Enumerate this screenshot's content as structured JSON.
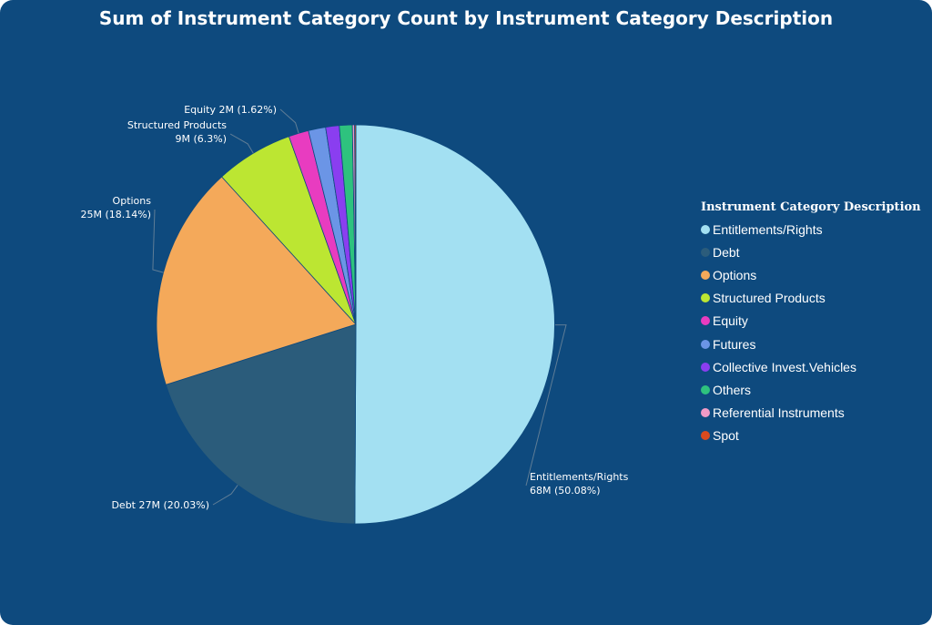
{
  "chart_data": {
    "type": "pie",
    "title": "Sum of Instrument Category Count by Instrument Category Description",
    "legend": {
      "title": "Instrument Category Description",
      "placement": "right"
    },
    "slices": [
      {
        "name": "Entitlements/Rights",
        "percent": 50.08,
        "label": "Entitlements/Rights 68M (50.08%)",
        "color": "#a3e0f2"
      },
      {
        "name": "Debt",
        "percent": 20.03,
        "label": "Debt 27M (20.03%)",
        "color": "#2b5c7b"
      },
      {
        "name": "Options",
        "percent": 18.14,
        "label": "Options 25M (18.14%)",
        "color": "#f4a95a"
      },
      {
        "name": "Structured Products",
        "percent": 6.3,
        "label": "Structured Products 9M (6.3%)",
        "color": "#bce632"
      },
      {
        "name": "Equity",
        "percent": 1.62,
        "label": "Equity 2M (1.62%)",
        "color": "#e83cc0"
      },
      {
        "name": "Futures",
        "percent": 1.4,
        "label": "",
        "color": "#6b95e6"
      },
      {
        "name": "Collective Invest.Vehicles",
        "percent": 1.1,
        "label": "",
        "color": "#8a3ef0"
      },
      {
        "name": "Others",
        "percent": 1.05,
        "label": "",
        "color": "#2ec27e"
      },
      {
        "name": "Referential Instruments",
        "percent": 0.18,
        "label": "",
        "color": "#f19ac6"
      },
      {
        "name": "Spot",
        "percent": 0.1,
        "label": "",
        "color": "#d94a1e"
      }
    ]
  }
}
